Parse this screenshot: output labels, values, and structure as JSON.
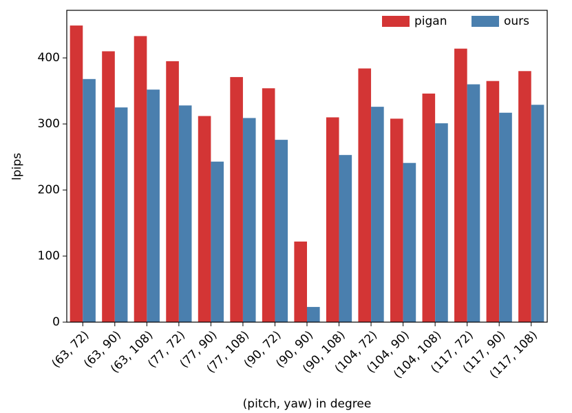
{
  "chart_data": {
    "type": "bar",
    "x_label": "(pitch, yaw) in degree",
    "y_label": "lpips",
    "categories": [
      "(63, 72)",
      "(63, 90)",
      "(63, 108)",
      "(77, 72)",
      "(77, 90)",
      "(77, 108)",
      "(90, 72)",
      "(90, 90)",
      "(90, 108)",
      "(104, 72)",
      "(104, 90)",
      "(104, 108)",
      "(117, 72)",
      "(117, 90)",
      "(117, 108)"
    ],
    "series": [
      {
        "name": "pigan",
        "color": "#d33535",
        "values": [
          449,
          410,
          433,
          395,
          312,
          371,
          354,
          122,
          310,
          384,
          308,
          346,
          414,
          365,
          380
        ]
      },
      {
        "name": "ours",
        "color": "#4a7fae",
        "values": [
          368,
          325,
          352,
          328,
          243,
          309,
          276,
          23,
          253,
          326,
          241,
          301,
          360,
          317,
          329
        ]
      }
    ],
    "ylim": [
      0,
      472
    ],
    "yticks": [
      0,
      100,
      200,
      300,
      400
    ],
    "legend": "upper right"
  }
}
